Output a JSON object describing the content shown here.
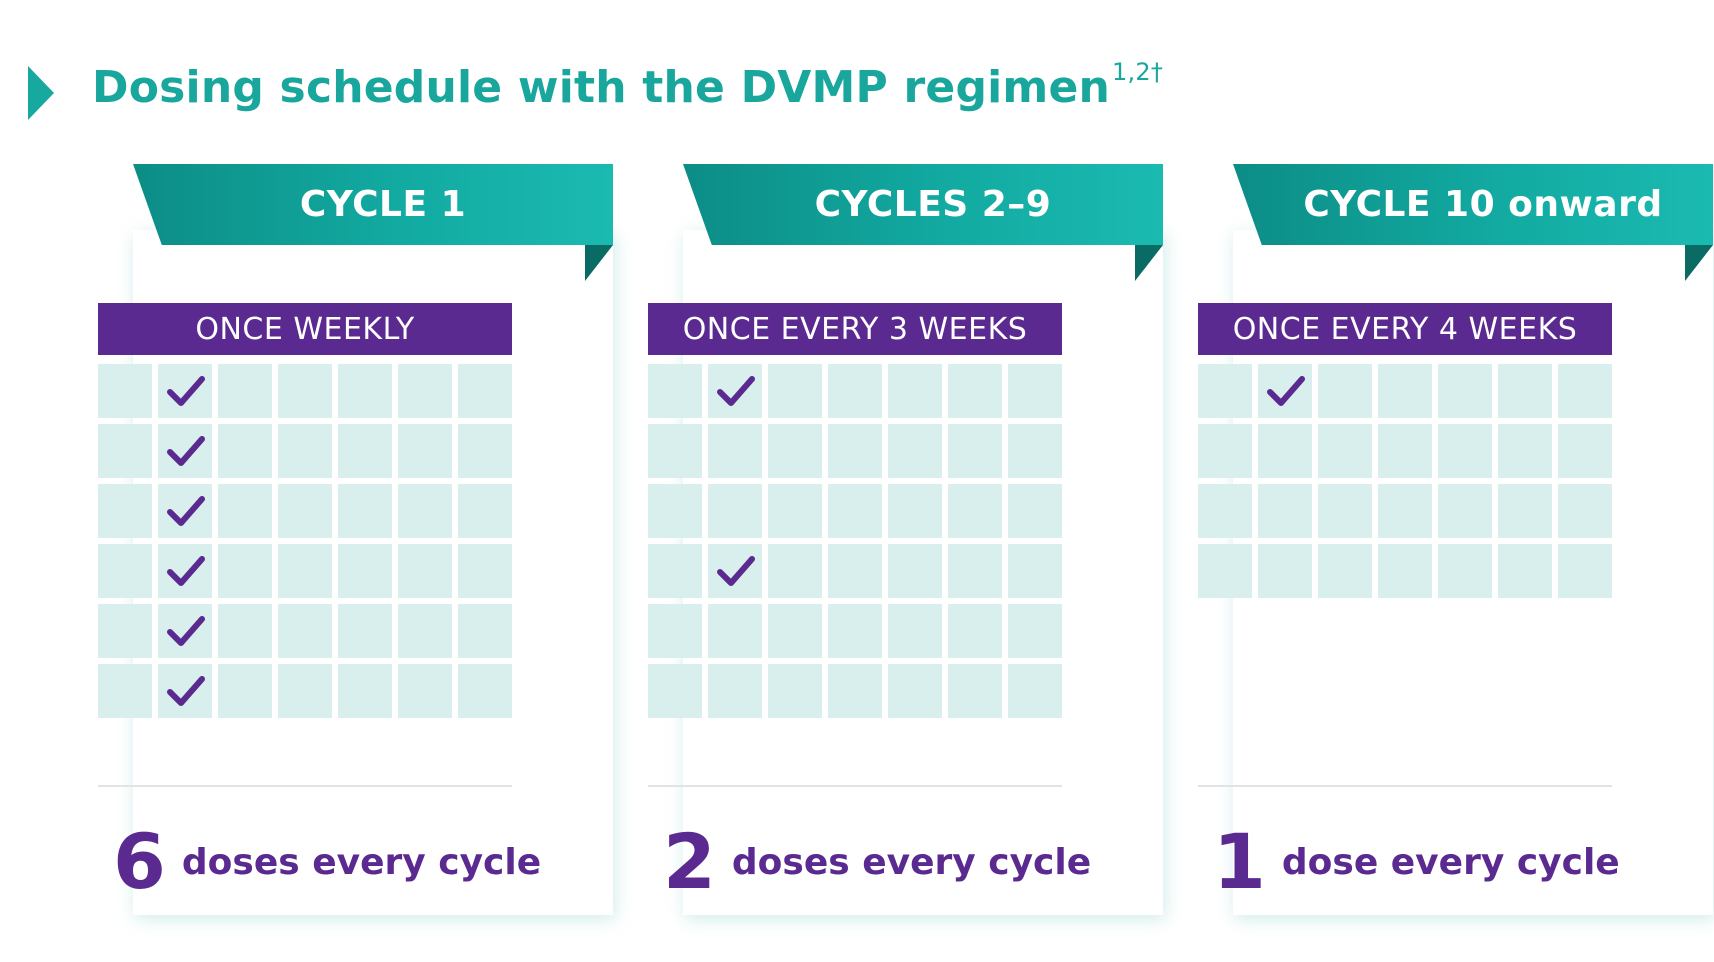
{
  "title": {
    "text": "Dosing schedule with the DVMP regimen",
    "superscript": "1,2†"
  },
  "colors": {
    "teal": "#19a69c",
    "purple": "#5b2a91",
    "cell": "#d9efed"
  },
  "cards": [
    {
      "banner": "CYCLE 1",
      "frequency": "ONCE WEEKLY",
      "rows": 6,
      "columns": 7,
      "checked_rows": [
        0,
        1,
        2,
        3,
        4,
        5
      ],
      "checked_column": 1,
      "dose_number": "6",
      "dose_text": "doses every cycle"
    },
    {
      "banner": "CYCLES 2–9",
      "frequency": "ONCE EVERY 3 WEEKS",
      "rows": 6,
      "columns": 7,
      "checked_rows": [
        0,
        3
      ],
      "checked_column": 1,
      "dose_number": "2",
      "dose_text": "doses every cycle"
    },
    {
      "banner": "CYCLE 10 onward",
      "frequency": "ONCE EVERY 4 WEEKS",
      "rows": 4,
      "columns": 7,
      "checked_rows": [
        0
      ],
      "checked_column": 1,
      "dose_number": "1",
      "dose_text": "dose every cycle"
    }
  ]
}
